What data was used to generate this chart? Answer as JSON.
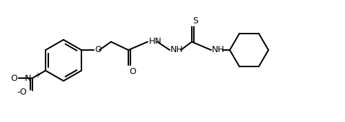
{
  "background_color": "#ffffff",
  "line_color": "#000000",
  "line_width": 1.5,
  "font_size": 9,
  "figsize": [
    5.0,
    1.78
  ],
  "dpi": 100,
  "labels": {
    "NO2_N": "N",
    "NO2_plus": "+",
    "NO2_O1": "-O",
    "NO2_O2": "O",
    "O_ether": "O",
    "C_carbonyl": "O",
    "NH1": "HN",
    "NH2": "NH",
    "S": "S",
    "NH3": "NH"
  }
}
